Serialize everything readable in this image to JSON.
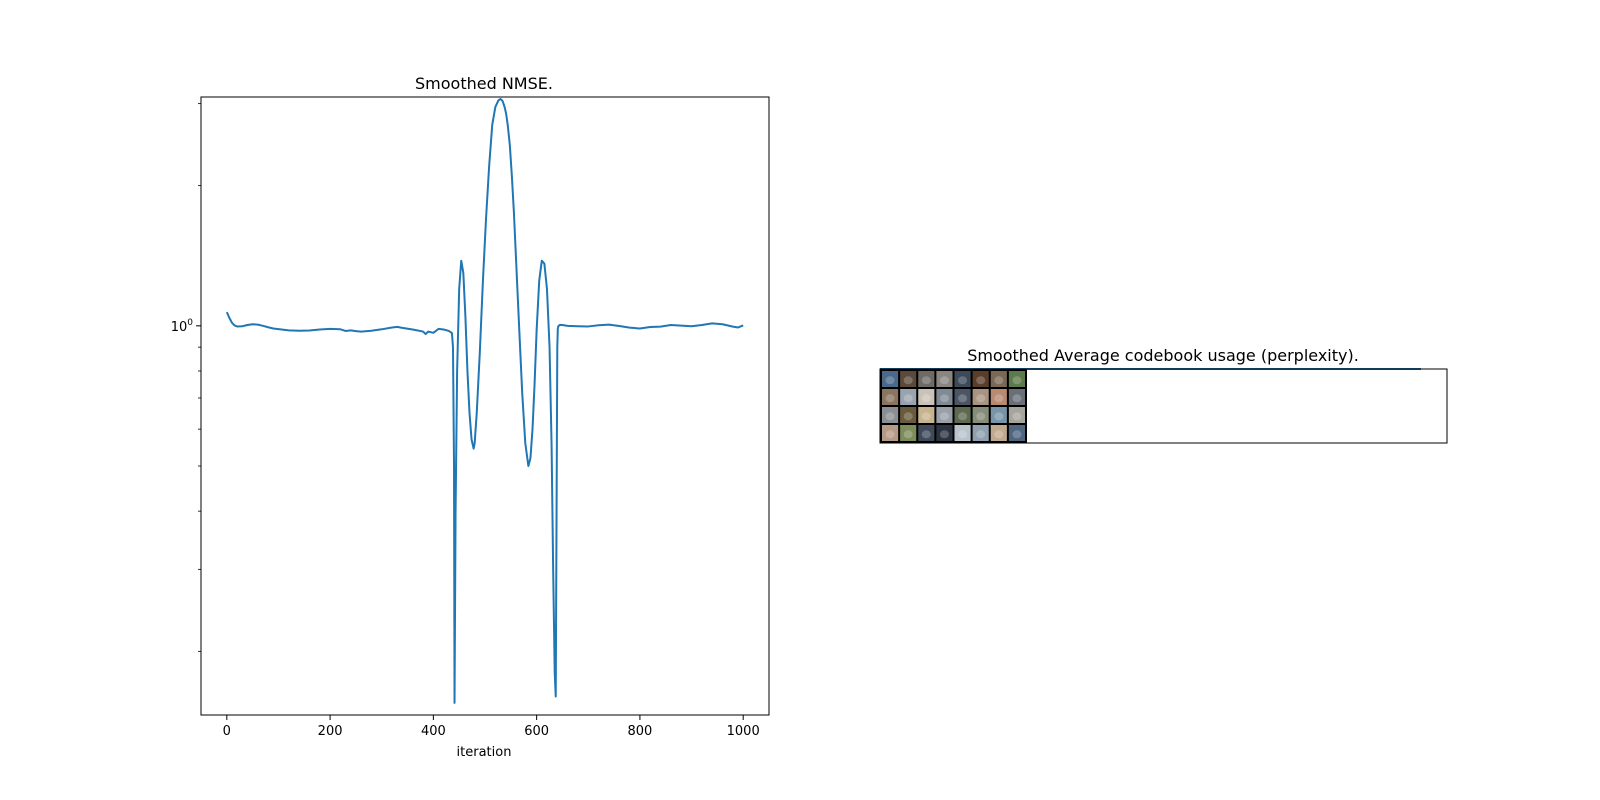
{
  "chart_data": [
    {
      "type": "line",
      "title": "Smoothed NMSE.",
      "xlabel": "iteration",
      "ylabel": "",
      "yscale": "log",
      "xlim": [
        -50,
        1050
      ],
      "ylim": [
        0.146,
        3.1
      ],
      "xticks": [
        0,
        200,
        400,
        600,
        800,
        1000
      ],
      "xtick_labels": [
        "0",
        "200",
        "400",
        "600",
        "800",
        "1000"
      ],
      "yticks_major": [
        1
      ],
      "ytick_major_labels": [
        {
          "base": "10",
          "exp": "0"
        }
      ],
      "yticks_minor": [
        0.2,
        0.3,
        0.4,
        0.5,
        0.6,
        0.7,
        0.8,
        0.9,
        2,
        3
      ],
      "grid": false,
      "series": [
        {
          "color": "#1f77b4",
          "x": [
            0,
            5,
            10,
            15,
            20,
            30,
            40,
            50,
            60,
            70,
            80,
            90,
            100,
            120,
            140,
            160,
            180,
            200,
            220,
            230,
            240,
            250,
            260,
            280,
            300,
            320,
            330,
            340,
            360,
            380,
            385,
            390,
            400,
            410,
            420,
            430,
            436,
            438,
            440,
            441,
            443,
            446,
            450,
            454,
            458,
            462,
            466,
            470,
            474,
            478,
            480,
            484,
            490,
            496,
            502,
            508,
            514,
            520,
            526,
            530,
            534,
            538,
            541,
            544,
            548,
            552,
            556,
            560,
            566,
            572,
            578,
            584,
            588,
            592,
            596,
            600,
            605,
            610,
            615,
            620,
            625,
            629,
            632,
            635,
            637,
            639,
            640,
            641,
            642,
            644,
            646,
            650,
            660,
            680,
            700,
            720,
            740,
            760,
            780,
            800,
            820,
            840,
            860,
            880,
            900,
            920,
            940,
            960,
            980,
            990,
            1000
          ],
          "y": [
            1.07,
            1.04,
            1.015,
            1.002,
            0.997,
            0.998,
            1.004,
            1.008,
            1.006,
            1.0,
            0.993,
            0.987,
            0.984,
            0.978,
            0.976,
            0.977,
            0.982,
            0.985,
            0.983,
            0.975,
            0.978,
            0.974,
            0.972,
            0.976,
            0.983,
            0.992,
            0.995,
            0.99,
            0.982,
            0.972,
            0.96,
            0.972,
            0.966,
            0.985,
            0.982,
            0.975,
            0.965,
            0.9,
            0.5,
            0.155,
            0.4,
            0.8,
            1.2,
            1.38,
            1.3,
            1.05,
            0.8,
            0.65,
            0.57,
            0.545,
            0.56,
            0.65,
            0.88,
            1.25,
            1.7,
            2.2,
            2.7,
            2.95,
            3.05,
            3.07,
            3.04,
            2.95,
            2.85,
            2.7,
            2.45,
            2.1,
            1.75,
            1.4,
            1.0,
            0.72,
            0.56,
            0.5,
            0.52,
            0.6,
            0.75,
            0.98,
            1.25,
            1.38,
            1.36,
            1.2,
            0.9,
            0.55,
            0.3,
            0.18,
            0.16,
            0.5,
            0.9,
            0.985,
            0.998,
            1.003,
            1.005,
            1.004,
            1.0,
            0.998,
            0.997,
            1.003,
            1.006,
            0.999,
            0.991,
            0.987,
            0.994,
            0.996,
            1.004,
            1.001,
            0.998,
            1.004,
            1.012,
            1.008,
            0.996,
            0.992,
            1.002
          ]
        }
      ]
    },
    {
      "type": "line",
      "title": "Smoothed Average codebook usage (perplexity).",
      "xlabel": "",
      "ylabel": "",
      "series": [
        {
          "color": "#1f77b4",
          "x": [
            0,
            1
          ],
          "y": [
            1,
            1
          ]
        }
      ],
      "image_grid": {
        "rows": 4,
        "cols": 8,
        "tile_colors": [
          "#4a6a8a",
          "#5b4a3c",
          "#6e6a66",
          "#8a8580",
          "#3c4a5a",
          "#5a3e2a",
          "#7a6a55",
          "#5c7a4a",
          "#8a7560",
          "#9aa3b0",
          "#c9c2b8",
          "#7f8a95",
          "#4b5563",
          "#a89480",
          "#b88a70",
          "#6a6f78",
          "#8b8f94",
          "#6b5b3e",
          "#c7b38f",
          "#9aa0a8",
          "#5e6a4f",
          "#868d79",
          "#7895a8",
          "#a7a39d",
          "#b59a86",
          "#7d8c5a",
          "#3e4a5a",
          "#2c3340",
          "#b9c3cc",
          "#8fa0b0",
          "#c0a98e",
          "#4f6580"
        ]
      }
    }
  ]
}
